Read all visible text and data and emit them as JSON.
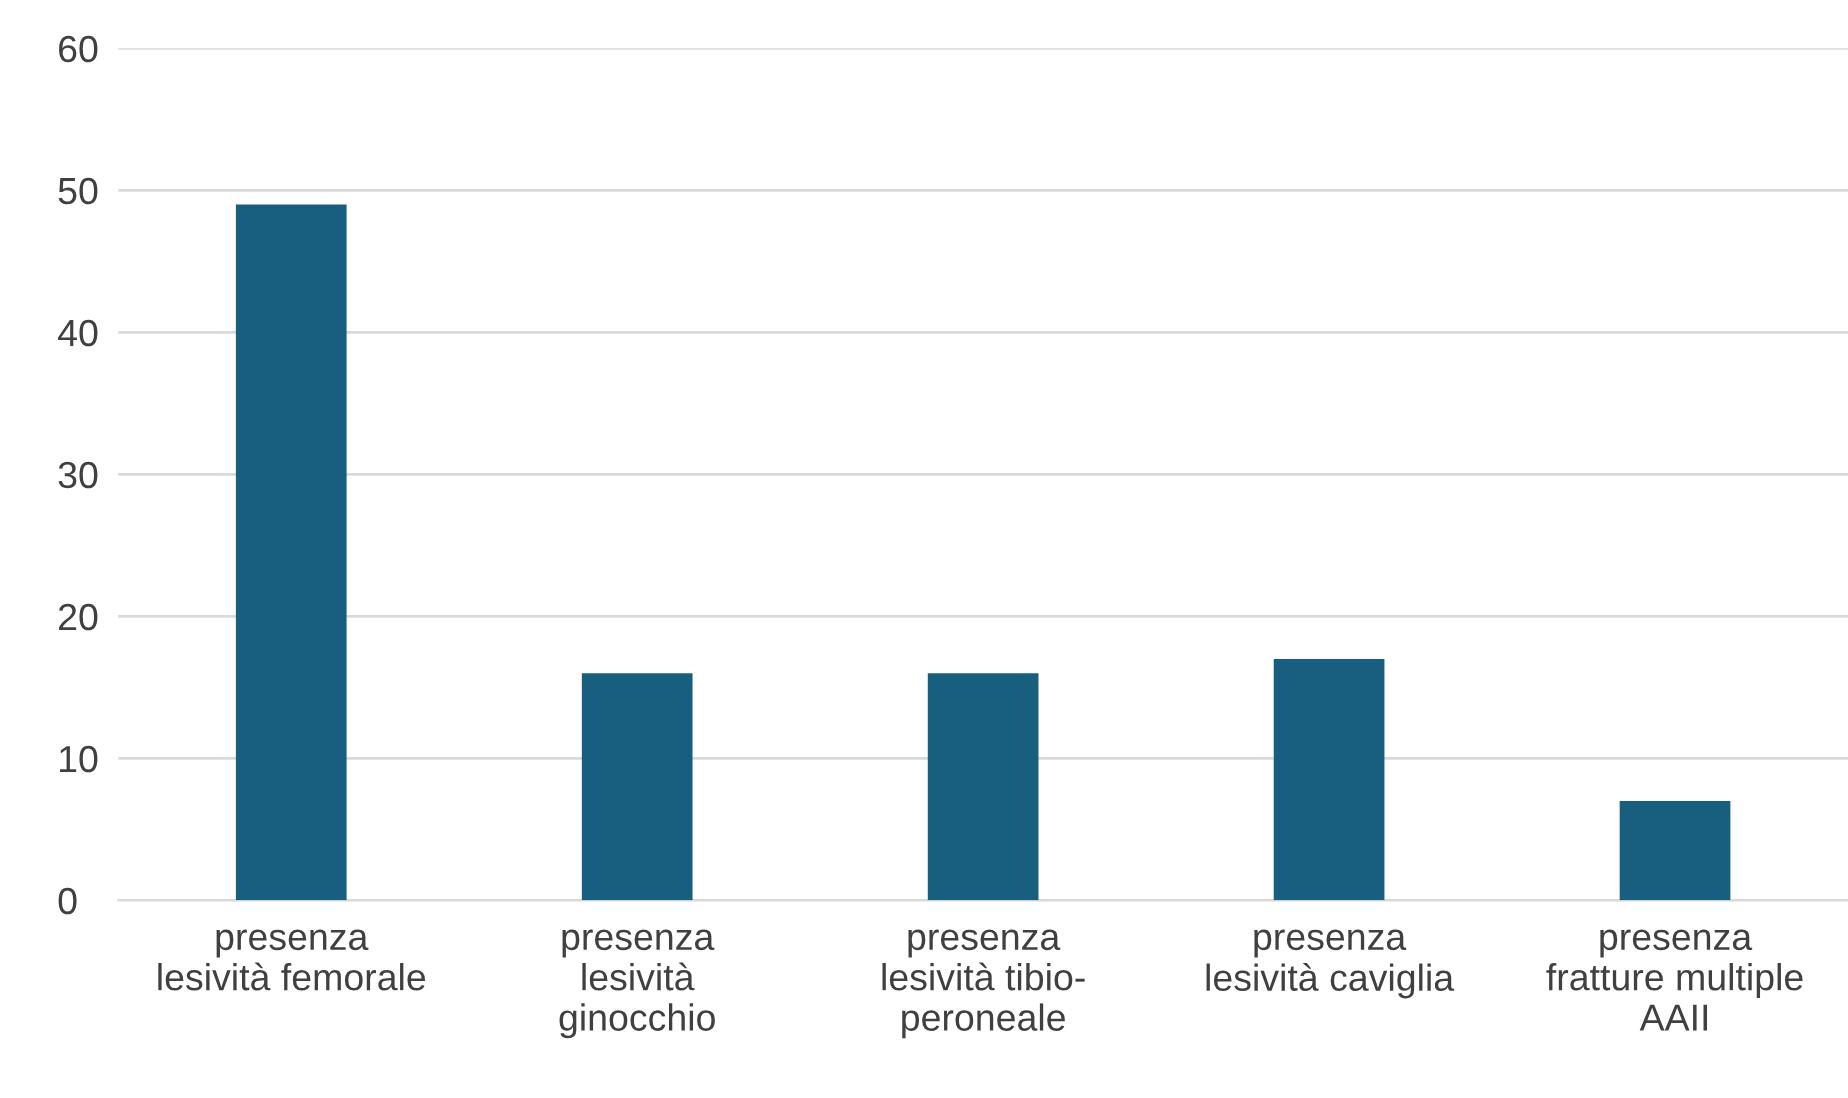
{
  "chart_data": {
    "type": "bar",
    "categories": [
      "presenza\nlesività femorale",
      "presenza\nlesività\nginocchio",
      "presenza\nlesività tibio-\nperoneale",
      "presenza\nlesività caviglia",
      "presenza\nfratture multiple\nAAII"
    ],
    "values": [
      49,
      16,
      16,
      17,
      7
    ],
    "color": "#175e7f",
    "ylim": [
      0,
      60
    ],
    "yticks": [
      0,
      10,
      20,
      30,
      40,
      50,
      60
    ],
    "grid": "y"
  }
}
